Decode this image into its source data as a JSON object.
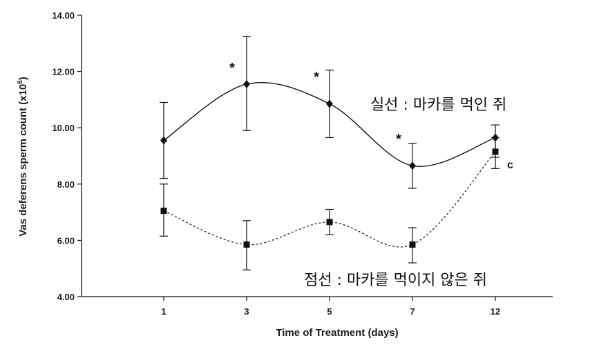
{
  "chart_data": {
    "type": "line",
    "xlabel": "Time of Treatment (days)",
    "ylabel": "Vas deferens sperm count (x10",
    "ylabel_superscript": "6",
    "ylabel_suffix": ")",
    "ylim": [
      4.0,
      14.0
    ],
    "yticks": [
      "4.00",
      "6.00",
      "8.00",
      "10.00",
      "12.00",
      "14.00"
    ],
    "categories": [
      "1",
      "3",
      "5",
      "7",
      "12"
    ],
    "grid": false,
    "series": [
      {
        "marker": "diamond",
        "line": "solid",
        "values": [
          9.55,
          11.55,
          10.85,
          8.65,
          9.65
        ],
        "err_low": [
          8.2,
          9.9,
          9.65,
          7.85,
          8.95
        ],
        "err_high": [
          10.9,
          13.25,
          12.05,
          9.45,
          10.1
        ]
      },
      {
        "marker": "square",
        "line": "dotted",
        "values": [
          7.05,
          5.85,
          6.65,
          5.85,
          9.15
        ],
        "err_low": [
          6.15,
          4.95,
          6.2,
          5.2,
          8.55
        ],
        "err_high": [
          8.0,
          6.7,
          7.1,
          6.45,
          9.65
        ]
      }
    ],
    "annotations": {
      "stars": [
        "*",
        "*",
        "*"
      ],
      "c_label": "c",
      "solid_legend": "실선 : 마카를 먹인 쥐",
      "dotted_legend": "점선 : 마카를 먹이지 않은 쥐"
    }
  }
}
